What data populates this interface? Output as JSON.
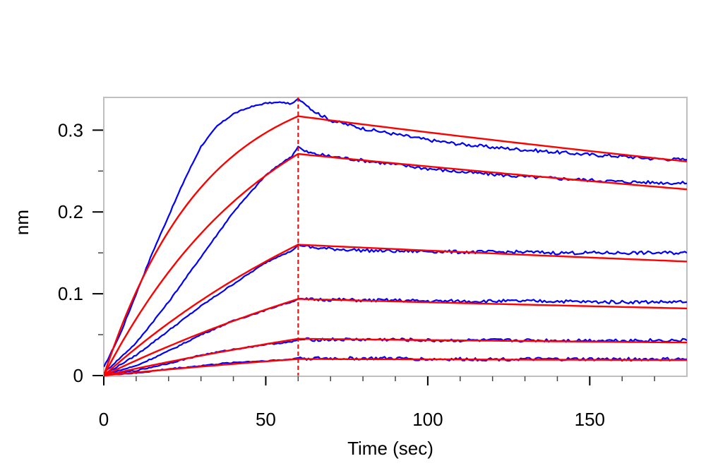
{
  "chart_data": {
    "type": "line",
    "title": "",
    "xlabel": "Time (sec)",
    "ylabel": "nm",
    "xlim": [
      0,
      180
    ],
    "ylim": [
      0,
      0.34
    ],
    "x_ticks": [
      0,
      50,
      100,
      150
    ],
    "x_tick_labels": [
      "0",
      "50",
      "100",
      "150"
    ],
    "x_minor_step": 10,
    "y_ticks": [
      0,
      0.1,
      0.2,
      0.3
    ],
    "y_tick_labels": [
      "0",
      "0.1",
      "0.2",
      "0.3"
    ],
    "y_minor_step": 0.05,
    "grid": false,
    "legend": "none",
    "association_end": 60,
    "measured_color": "#0000ff",
    "fit_color": "#ff0000",
    "marker_color": "#ff0000",
    "measured": [
      {
        "points": [
          [
            0,
            0.01
          ],
          [
            5,
            0.05
          ],
          [
            10,
            0.1
          ],
          [
            15,
            0.15
          ],
          [
            20,
            0.195
          ],
          [
            25,
            0.24
          ],
          [
            30,
            0.28
          ],
          [
            35,
            0.305
          ],
          [
            40,
            0.32
          ],
          [
            45,
            0.328
          ],
          [
            50,
            0.333
          ],
          [
            55,
            0.334
          ],
          [
            58,
            0.332
          ],
          [
            60,
            0.338
          ],
          [
            62,
            0.333
          ],
          [
            65,
            0.323
          ],
          [
            70,
            0.312
          ],
          [
            80,
            0.302
          ],
          [
            90,
            0.295
          ],
          [
            100,
            0.288
          ],
          [
            110,
            0.283
          ],
          [
            120,
            0.279
          ],
          [
            130,
            0.276
          ],
          [
            140,
            0.273
          ],
          [
            150,
            0.27
          ],
          [
            160,
            0.268
          ],
          [
            170,
            0.265
          ],
          [
            180,
            0.264
          ]
        ]
      },
      {
        "points": [
          [
            0,
            0.003
          ],
          [
            10,
            0.04
          ],
          [
            20,
            0.09
          ],
          [
            30,
            0.145
          ],
          [
            40,
            0.2
          ],
          [
            50,
            0.245
          ],
          [
            55,
            0.26
          ],
          [
            58,
            0.268
          ],
          [
            60,
            0.28
          ],
          [
            62,
            0.274
          ],
          [
            65,
            0.271
          ],
          [
            70,
            0.268
          ],
          [
            80,
            0.263
          ],
          [
            90,
            0.258
          ],
          [
            100,
            0.253
          ],
          [
            110,
            0.249
          ],
          [
            120,
            0.246
          ],
          [
            130,
            0.243
          ],
          [
            140,
            0.241
          ],
          [
            150,
            0.239
          ],
          [
            160,
            0.237
          ],
          [
            170,
            0.236
          ],
          [
            180,
            0.235
          ]
        ]
      },
      {
        "points": [
          [
            0,
            0.001
          ],
          [
            10,
            0.025
          ],
          [
            20,
            0.055
          ],
          [
            30,
            0.085
          ],
          [
            40,
            0.112
          ],
          [
            50,
            0.138
          ],
          [
            55,
            0.148
          ],
          [
            58,
            0.152
          ],
          [
            60,
            0.16
          ],
          [
            62,
            0.158
          ],
          [
            65,
            0.156
          ],
          [
            70,
            0.155
          ],
          [
            80,
            0.153
          ],
          [
            90,
            0.152
          ],
          [
            100,
            0.152
          ],
          [
            110,
            0.151
          ],
          [
            120,
            0.151
          ],
          [
            130,
            0.151
          ],
          [
            140,
            0.15
          ],
          [
            150,
            0.15
          ],
          [
            160,
            0.15
          ],
          [
            170,
            0.15
          ],
          [
            180,
            0.15
          ]
        ]
      },
      {
        "points": [
          [
            0,
            0.001
          ],
          [
            10,
            0.012
          ],
          [
            20,
            0.03
          ],
          [
            30,
            0.05
          ],
          [
            40,
            0.067
          ],
          [
            50,
            0.08
          ],
          [
            55,
            0.087
          ],
          [
            58,
            0.09
          ],
          [
            60,
            0.094
          ],
          [
            62,
            0.093
          ],
          [
            65,
            0.093
          ],
          [
            70,
            0.093
          ],
          [
            80,
            0.092
          ],
          [
            90,
            0.092
          ],
          [
            100,
            0.091
          ],
          [
            110,
            0.091
          ],
          [
            120,
            0.091
          ],
          [
            130,
            0.091
          ],
          [
            140,
            0.091
          ],
          [
            150,
            0.09
          ],
          [
            160,
            0.09
          ],
          [
            170,
            0.09
          ],
          [
            180,
            0.09
          ]
        ]
      },
      {
        "points": [
          [
            0,
            0.001
          ],
          [
            10,
            0.006
          ],
          [
            20,
            0.015
          ],
          [
            30,
            0.025
          ],
          [
            40,
            0.032
          ],
          [
            50,
            0.038
          ],
          [
            55,
            0.04
          ],
          [
            58,
            0.041
          ],
          [
            60,
            0.044
          ],
          [
            62,
            0.044
          ],
          [
            65,
            0.044
          ],
          [
            70,
            0.044
          ],
          [
            80,
            0.044
          ],
          [
            90,
            0.044
          ],
          [
            100,
            0.043
          ],
          [
            110,
            0.043
          ],
          [
            120,
            0.043
          ],
          [
            130,
            0.043
          ],
          [
            140,
            0.043
          ],
          [
            150,
            0.043
          ],
          [
            160,
            0.043
          ],
          [
            170,
            0.043
          ],
          [
            180,
            0.043
          ]
        ]
      },
      {
        "points": [
          [
            0,
            0.001
          ],
          [
            10,
            0.003
          ],
          [
            20,
            0.008
          ],
          [
            30,
            0.012
          ],
          [
            40,
            0.016
          ],
          [
            50,
            0.018
          ],
          [
            55,
            0.019
          ],
          [
            58,
            0.02
          ],
          [
            60,
            0.022
          ],
          [
            62,
            0.021
          ],
          [
            65,
            0.021
          ],
          [
            70,
            0.021
          ],
          [
            80,
            0.021
          ],
          [
            90,
            0.021
          ],
          [
            100,
            0.02
          ],
          [
            110,
            0.02
          ],
          [
            120,
            0.02
          ],
          [
            130,
            0.02
          ],
          [
            140,
            0.02
          ],
          [
            150,
            0.02
          ],
          [
            160,
            0.02
          ],
          [
            170,
            0.02
          ],
          [
            180,
            0.02
          ]
        ]
      }
    ],
    "fits": [
      {
        "rmax": 0.37,
        "kobs": 0.0324,
        "kd": 0.0016
      },
      {
        "rmax": 0.395,
        "kobs": 0.0193,
        "kd": 0.00145
      },
      {
        "rmax": 0.36,
        "kobs": 0.0098,
        "kd": 0.00115
      },
      {
        "rmax": 0.27,
        "kobs": 0.0071,
        "kd": 0.0011
      },
      {
        "rmax": 0.16,
        "kobs": 0.0055,
        "kd": 0.0009
      },
      {
        "rmax": 0.072,
        "kobs": 0.0055,
        "kd": 0.00055
      }
    ]
  }
}
